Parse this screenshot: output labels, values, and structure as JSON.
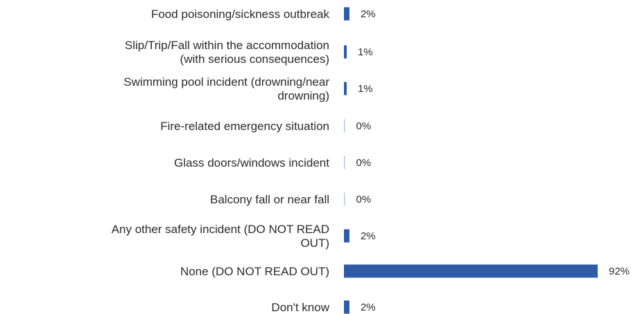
{
  "chart_data": {
    "type": "bar",
    "orientation": "horizontal",
    "categories": [
      [
        "Food poisoning/sickness outbreak"
      ],
      [
        "Slip/Trip/Fall within the accommodation",
        "(with serious consequences)"
      ],
      [
        "Swimming pool incident (drowning/near",
        "drowning)"
      ],
      [
        "Fire-related emergency situation"
      ],
      [
        "Glass doors/windows incident"
      ],
      [
        "Balcony fall or near fall"
      ],
      [
        "Any other safety incident (DO NOT READ",
        "OUT)"
      ],
      [
        "None (DO NOT READ OUT)"
      ],
      [
        "Don't know"
      ]
    ],
    "values": [
      2,
      1,
      1,
      0,
      0,
      0,
      2,
      92,
      2
    ],
    "value_labels": [
      "2%",
      "1%",
      "1%",
      "0%",
      "0%",
      "0%",
      "2%",
      "92%",
      "2%"
    ],
    "unit": "%",
    "xlim": [
      0,
      92
    ],
    "grid": false,
    "legend": "none",
    "colors": {
      "bar": "#2f5aa8",
      "zero_bar": "#b9c6e2",
      "text": "#2b2b2b"
    }
  }
}
